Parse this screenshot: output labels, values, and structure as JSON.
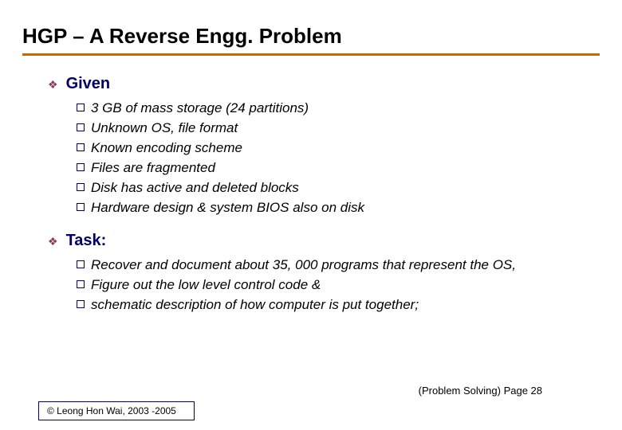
{
  "title": "HGP – A Reverse Engg. Problem",
  "colors": {
    "title_text": "#000000",
    "title_underline": "#cc6600",
    "section_title": "#000066",
    "diamond": "#8a3860",
    "square_border": "#000066",
    "item_text": "#000000",
    "footer_text": "#000000",
    "footer_box_border": "#000066"
  },
  "fonts": {
    "title_size": 26,
    "section_size": 20,
    "item_size": 17,
    "footer_right_size": 13,
    "footer_box_size": 12
  },
  "sections": [
    {
      "heading": "Given",
      "items": [
        "3 GB of mass storage (24 partitions)",
        "Unknown OS, file format",
        "Known encoding scheme",
        "Files are fragmented",
        "Disk has active and deleted blocks",
        "Hardware design & system BIOS also on disk"
      ]
    },
    {
      "heading": "Task:",
      "items": [
        "Recover and document about 35, 000 programs that represent the OS,",
        "Figure out the low level control code &",
        "schematic description of how computer is put together;"
      ]
    }
  ],
  "footer": {
    "right": "(Problem Solving) Page 28",
    "box": "© Leong Hon Wai, 2003 -2005"
  }
}
